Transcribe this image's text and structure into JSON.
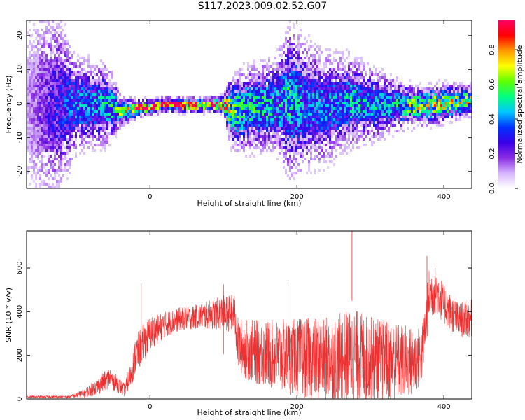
{
  "title": "S117.2023.009.02.52.G07",
  "chart_data": [
    {
      "type": "heatmap",
      "title": "S117.2023.009.02.52.G07",
      "xlabel": "Height of straight line (km)",
      "ylabel": "Frequency (Hz)",
      "xlim": [
        -168,
        438
      ],
      "ylim": [
        -25,
        24.5
      ],
      "xticks": [
        0,
        200,
        400
      ],
      "yticks": [
        -20,
        -10,
        0,
        10,
        20
      ],
      "colorbar": {
        "label": "Normalized spectral amplitude",
        "range": [
          0,
          0.97
        ],
        "ticks": [
          0.0,
          0.2,
          0.4,
          0.6,
          0.8
        ],
        "tick_labels": [
          "0.0",
          "0.2",
          "0.4",
          "0.6",
          "0.8"
        ],
        "colormap": [
          "#ffffff",
          "#d6b5ff",
          "#8a2be2",
          "#3a00e8",
          "#0033ff",
          "#00c8ff",
          "#00ff80",
          "#60ff00",
          "#ffff00",
          "#ff9900",
          "#ff0000",
          "#ff0066"
        ]
      },
      "spectral_track": {
        "x": [
          -168,
          -130,
          -100,
          -60,
          -40,
          -20,
          0,
          20,
          50,
          80,
          100,
          110,
          140,
          170,
          190,
          210,
          240,
          270,
          300,
          330,
          360,
          380,
          400,
          420,
          438
        ],
        "frequency": [
          0,
          0,
          0,
          0,
          -2,
          -1,
          -0.5,
          0,
          0,
          0,
          0,
          -2,
          -1,
          0,
          1,
          0,
          -1,
          1,
          0,
          0,
          -0.5,
          0,
          0.5,
          1,
          1.5
        ],
        "peak_amplitude": [
          0.1,
          0.25,
          0.35,
          0.4,
          0.55,
          0.75,
          0.9,
          0.95,
          0.9,
          0.85,
          0.8,
          0.5,
          0.45,
          0.4,
          0.45,
          0.35,
          0.35,
          0.4,
          0.4,
          0.4,
          0.6,
          0.65,
          0.65,
          0.6,
          0.6
        ],
        "spread_hz": [
          25,
          22,
          10,
          9,
          3,
          2,
          1.5,
          1.5,
          1.5,
          1.5,
          2,
          8,
          9,
          10,
          16,
          14,
          12,
          10,
          8,
          6,
          4,
          4,
          4,
          3.5,
          3
        ]
      }
    },
    {
      "type": "line",
      "xlabel": "Height of straight line (km)",
      "ylabel": "SNR (10 * v/v)",
      "xlim": [
        -168,
        438
      ],
      "ylim": [
        0,
        770
      ],
      "xticks": [
        0,
        200,
        400
      ],
      "yticks": [
        0,
        200,
        400,
        600
      ],
      "color": "#f03030",
      "x": [
        -168,
        -140,
        -110,
        -90,
        -70,
        -55,
        -45,
        -35,
        -25,
        -20,
        -10,
        0,
        20,
        40,
        60,
        80,
        100,
        115,
        120,
        130,
        150,
        200,
        250,
        275,
        300,
        340,
        360,
        370,
        380,
        390,
        400,
        420,
        438
      ],
      "y": [
        10,
        10,
        10,
        25,
        60,
        100,
        70,
        40,
        120,
        200,
        250,
        300,
        340,
        365,
        375,
        385,
        395,
        390,
        250,
        230,
        210,
        190,
        180,
        200,
        180,
        170,
        170,
        200,
        480,
        500,
        430,
        360,
        370
      ],
      "spread": [
        5,
        5,
        5,
        20,
        40,
        50,
        40,
        30,
        60,
        90,
        90,
        80,
        60,
        55,
        55,
        65,
        80,
        90,
        120,
        140,
        150,
        180,
        200,
        220,
        200,
        180,
        160,
        130,
        120,
        110,
        90,
        80,
        90
      ],
      "peaks": [
        {
          "x": 275,
          "y": 770
        },
        {
          "x": 377,
          "y": 655
        },
        {
          "x": 188,
          "y": 535
        },
        {
          "x": -12,
          "y": 530
        },
        {
          "x": 100,
          "y": 525
        }
      ]
    }
  ]
}
